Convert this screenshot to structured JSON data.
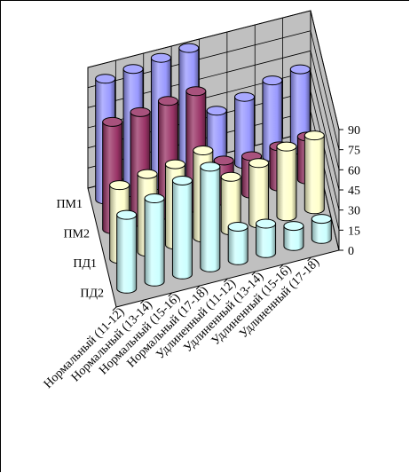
{
  "chart_data": {
    "type": "bar",
    "style": "3d-cylinder",
    "categories": [
      "Нормальный (11-12)",
      "Нормальный (13-14)",
      "Нормальный (15-16)",
      "Нормальный (17-18)",
      "Удлиненный (11-12)",
      "Удлиненный (13-14)",
      "Удлиненный (15-16)",
      "Удлиненный (17-18)"
    ],
    "series": [
      {
        "name": "ПМ1",
        "color": "#9999ff",
        "values": [
          90,
          92,
          95,
          97,
          45,
          50,
          57,
          60
        ]
      },
      {
        "name": "ПМ2",
        "color": "#993366",
        "values": [
          80,
          82,
          85,
          87,
          30,
          28,
          30,
          32
        ]
      },
      {
        "name": "ПД1",
        "color": "#ffffcc",
        "values": [
          55,
          58,
          60,
          65,
          40,
          45,
          52,
          55
        ]
      },
      {
        "name": "ПД2",
        "color": "#ccffff",
        "values": [
          55,
          62,
          70,
          75,
          25,
          22,
          15,
          15
        ]
      }
    ],
    "yticks": [
      0,
      15,
      30,
      45,
      60,
      75,
      90
    ],
    "ylim": [
      0,
      90
    ],
    "grid": true,
    "title": "",
    "xlabel": "",
    "ylabel": ""
  }
}
